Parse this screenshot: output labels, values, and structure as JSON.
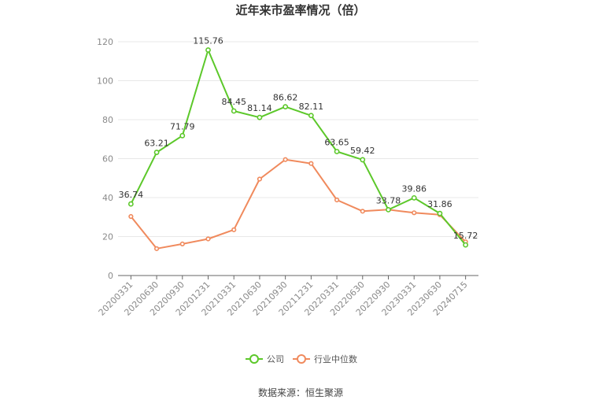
{
  "chart_data": {
    "type": "line",
    "title": "近年来市盈率情况（倍）",
    "categories": [
      "20200331",
      "20200630",
      "20200930",
      "20201231",
      "20210331",
      "20210630",
      "20210930",
      "20211231",
      "20220331",
      "20220630",
      "20220930",
      "20230331",
      "20230630",
      "20240715"
    ],
    "ylim": [
      0,
      120
    ],
    "yticks": [
      0,
      20,
      40,
      60,
      80,
      100,
      120
    ],
    "grid": true,
    "legend_position": "bottom",
    "series": [
      {
        "name": "公司",
        "color": "#5cc82a",
        "values": [
          36.74,
          63.21,
          71.79,
          115.76,
          84.45,
          81.14,
          86.62,
          82.11,
          63.65,
          59.42,
          33.78,
          39.86,
          31.86,
          15.72
        ],
        "labels": [
          "36.74",
          "63.21",
          "71.79",
          "115.76",
          "84.45",
          "81.14",
          "86.62",
          "82.11",
          "63.65",
          "59.42",
          "33.78",
          "39.86",
          "31.86",
          "15.72"
        ]
      },
      {
        "name": "行业中位数",
        "color": "#f08a5d",
        "values": [
          30.3,
          13.8,
          16.2,
          18.8,
          23.5,
          49.5,
          59.5,
          57.5,
          38.8,
          33.0,
          33.8,
          32.2,
          31.2,
          17.3
        ]
      }
    ]
  },
  "footer": {
    "source": "数据来源：恒生聚源"
  }
}
